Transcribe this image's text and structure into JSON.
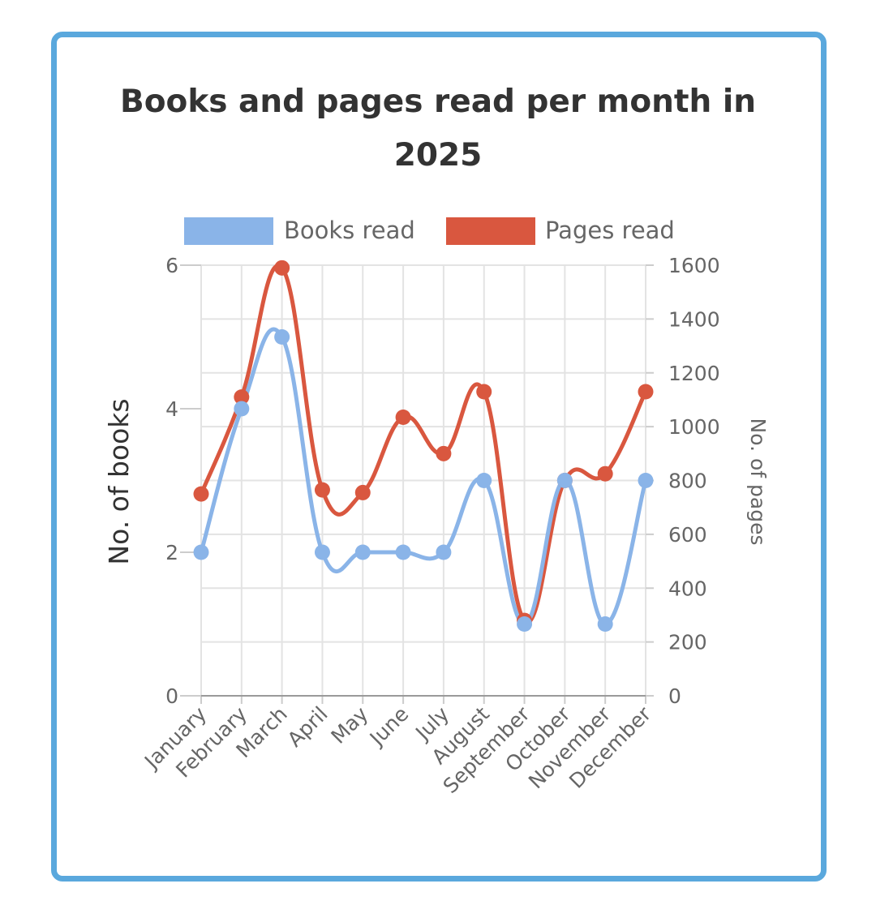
{
  "chart_data": {
    "type": "line",
    "title_lines": [
      "Books and pages read per month in",
      "2025"
    ],
    "categories": [
      "January",
      "February",
      "March",
      "April",
      "May",
      "June",
      "July",
      "August",
      "September",
      "October",
      "November",
      "December"
    ],
    "series": [
      {
        "name": "Books read",
        "axis": "left",
        "color": "#8ab4e8",
        "values": [
          2,
          4,
          5,
          2,
          2,
          2,
          2,
          3,
          1,
          3,
          1,
          3
        ]
      },
      {
        "name": "Pages read",
        "axis": "right",
        "color": "#d9573f",
        "values": [
          750,
          1110,
          1590,
          765,
          755,
          1035,
          900,
          1130,
          280,
          800,
          825,
          1130
        ]
      }
    ],
    "ylabel": "No. of books",
    "y2label": "No. of pages",
    "ylim": [
      0,
      6
    ],
    "y_ticks": [
      "0",
      "2",
      "4",
      "6"
    ],
    "y2lim": [
      0,
      1600
    ],
    "y2_ticks": [
      "0",
      "200",
      "400",
      "600",
      "800",
      "1000",
      "1200",
      "1400",
      "1600"
    ],
    "grid": true,
    "legend_position": "top"
  }
}
